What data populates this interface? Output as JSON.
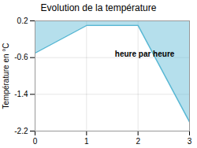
{
  "chart_data": {
    "type": "area",
    "title": "Evolution de la température",
    "ylabel": "Température en °C",
    "x": [
      0,
      1,
      2,
      3
    ],
    "values": [
      -0.5,
      0.1,
      0.1,
      -2.0
    ],
    "color": "#5ab8d4",
    "xlim": [
      0,
      3
    ],
    "ylim": [
      -2.2,
      0.2
    ],
    "xticks": [
      0,
      1,
      2,
      3
    ],
    "yticks": [
      0.2,
      -0.6,
      -1.4,
      -2.2
    ],
    "grid": true,
    "annotations": [
      {
        "text": "heure par heure",
        "x": 1.55,
        "y": -0.45
      }
    ]
  }
}
